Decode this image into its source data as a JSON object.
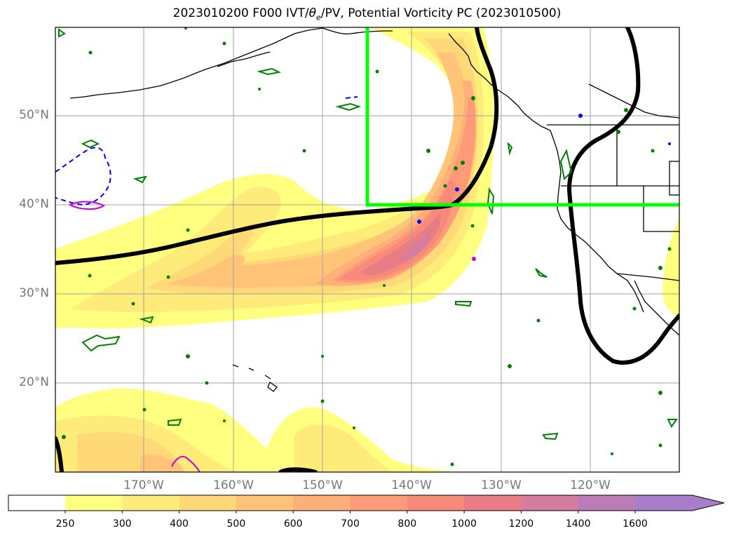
{
  "title": {
    "prefix": "2023010200 F000 IVT/",
    "theta": "θ",
    "theta_sub": "e",
    "suffix": "/PV, Potential Vorticity PC (2023010500)"
  },
  "lat_labels": [
    "50°N",
    "40°N",
    "30°N",
    "20°N"
  ],
  "lon_labels": [
    "170°W",
    "160°W",
    "150°W",
    "140°W",
    "130°W",
    "120°W"
  ],
  "colorbar": {
    "ticks": [
      "250",
      "300",
      "400",
      "500",
      "600",
      "700",
      "800",
      "1000",
      "1200",
      "1400",
      "1600"
    ],
    "colors": [
      "#ffff80",
      "#ffeb7a",
      "#ffd878",
      "#ffc478",
      "#ffaf7a",
      "#ff9a78",
      "#f98a7a",
      "#e87d86",
      "#d47d9c",
      "#bb7db8",
      "#a77dcc"
    ],
    "extend": "max"
  },
  "colors": {
    "region_box": "#00ff00",
    "pv_positive": "#008000",
    "pv_negative": "#0000ff",
    "pv_magenta": "#cc00cc",
    "jet_line": "#000000"
  }
}
